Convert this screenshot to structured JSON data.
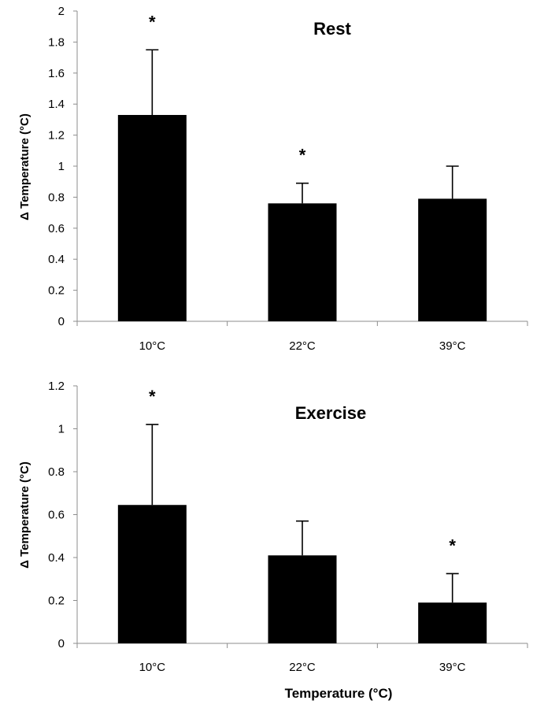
{
  "chart_data": [
    {
      "type": "bar",
      "title": "Rest",
      "ylabel": "Δ Temperature (°C)",
      "xlabel": "",
      "categories": [
        "10°C",
        "22°C",
        "39°C"
      ],
      "values": [
        1.33,
        0.76,
        0.79
      ],
      "error_upper": [
        1.75,
        0.89,
        1.0
      ],
      "significance": [
        "*",
        "*",
        ""
      ],
      "ylim": [
        0,
        2
      ],
      "yticks": [
        0,
        0.2,
        0.4,
        0.6,
        0.8,
        1,
        1.2,
        1.4,
        1.6,
        1.8,
        2
      ],
      "ytick_labels": [
        "0",
        "0.2",
        "0.4",
        "0.6",
        "0.8",
        "1",
        "1.2",
        "1.4",
        "1.6",
        "1.8",
        "2"
      ],
      "grid": false,
      "bar_color": "#000000"
    },
    {
      "type": "bar",
      "title": "Exercise",
      "ylabel": "Δ Temperature (°C)",
      "xlabel": "Temperature (°C)",
      "categories": [
        "10°C",
        "22°C",
        "39°C"
      ],
      "values": [
        0.645,
        0.41,
        0.19
      ],
      "error_upper": [
        1.02,
        0.57,
        0.325
      ],
      "significance": [
        "*",
        "",
        "*"
      ],
      "ylim": [
        0,
        1.2
      ],
      "yticks": [
        0,
        0.2,
        0.4,
        0.6,
        0.8,
        1,
        1.2
      ],
      "ytick_labels": [
        "0",
        "0.2",
        "0.4",
        "0.6",
        "0.8",
        "1",
        "1.2"
      ],
      "grid": false,
      "bar_color": "#000000"
    }
  ]
}
